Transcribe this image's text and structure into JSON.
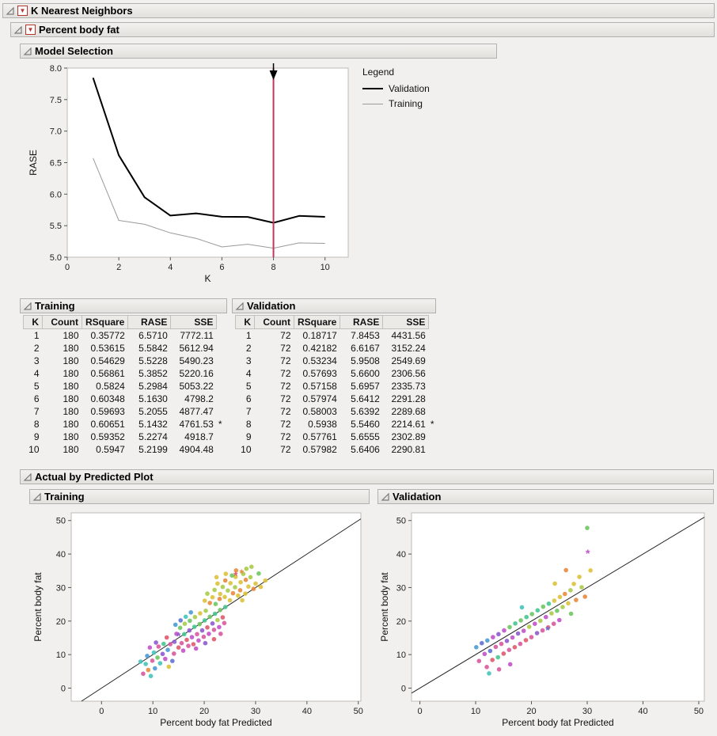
{
  "outline": {
    "knn": "K Nearest Neighbors",
    "pbf": "Percent body fat",
    "model_selection": "Model Selection",
    "training": "Training",
    "validation": "Validation",
    "actual_by_predicted": "Actual by Predicted Plot",
    "training2": "Training",
    "validation2": "Validation"
  },
  "legend": {
    "title": "Legend",
    "entries": [
      {
        "label": "Validation",
        "color": "#000000",
        "width": 2
      },
      {
        "label": "Training",
        "color": "#9a9a9a",
        "width": 1
      }
    ]
  },
  "palette": [
    "#e05a6d",
    "#e8893e",
    "#ddc23c",
    "#a8cc4a",
    "#6fc763",
    "#46c78f",
    "#45c4bc",
    "#4a9bd5",
    "#5f74d0",
    "#8e5bcf",
    "#c253c9",
    "#d85a9f"
  ],
  "chart_data": [
    {
      "type": "line",
      "title": "Model Selection",
      "xlabel": "K",
      "ylabel": "RASE",
      "xlim": [
        0,
        10.9
      ],
      "ylim": [
        5.0,
        8.0
      ],
      "xticks": [
        0,
        2,
        4,
        6,
        8,
        10
      ],
      "yticks": [
        5.0,
        5.5,
        6.0,
        6.5,
        7.0,
        7.5,
        8.0
      ],
      "x": [
        1,
        2,
        3,
        4,
        5,
        6,
        7,
        8,
        9,
        10
      ],
      "series": [
        {
          "name": "Validation",
          "color": "#000000",
          "width": 2,
          "values": [
            7.8453,
            6.6167,
            5.9508,
            5.66,
            5.6957,
            5.6412,
            5.6392,
            5.546,
            5.6555,
            5.6406
          ]
        },
        {
          "name": "Training",
          "color": "#9a9a9a",
          "width": 1,
          "values": [
            6.571,
            5.5842,
            5.5228,
            5.3852,
            5.2984,
            5.163,
            5.2055,
            5.1432,
            5.2274,
            5.2199
          ]
        }
      ],
      "selected_k": 8,
      "selection_color": "#c2375a",
      "marker_color": "#000000"
    },
    {
      "type": "table",
      "title": "Training",
      "columns": [
        "K",
        "Count",
        "RSquare",
        "RASE",
        "SSE"
      ],
      "rows": [
        [
          "1",
          "180",
          "0.35772",
          "6.5710",
          "7772.11",
          ""
        ],
        [
          "2",
          "180",
          "0.53615",
          "5.5842",
          "5612.94",
          ""
        ],
        [
          "3",
          "180",
          "0.54629",
          "5.5228",
          "5490.23",
          ""
        ],
        [
          "4",
          "180",
          "0.56861",
          "5.3852",
          "5220.16",
          ""
        ],
        [
          "5",
          "180",
          "0.5824",
          "5.2984",
          "5053.22",
          ""
        ],
        [
          "6",
          "180",
          "0.60348",
          "5.1630",
          "4798.2",
          ""
        ],
        [
          "7",
          "180",
          "0.59693",
          "5.2055",
          "4877.47",
          ""
        ],
        [
          "8",
          "180",
          "0.60651",
          "5.1432",
          "4761.53",
          "*"
        ],
        [
          "9",
          "180",
          "0.59352",
          "5.2274",
          "4918.7",
          ""
        ],
        [
          "10",
          "180",
          "0.5947",
          "5.2199",
          "4904.48",
          ""
        ]
      ]
    },
    {
      "type": "table",
      "title": "Validation",
      "columns": [
        "K",
        "Count",
        "RSquare",
        "RASE",
        "SSE"
      ],
      "rows": [
        [
          "1",
          "72",
          "0.18717",
          "7.8453",
          "4431.56",
          ""
        ],
        [
          "2",
          "72",
          "0.42182",
          "6.6167",
          "3152.24",
          ""
        ],
        [
          "3",
          "72",
          "0.53234",
          "5.9508",
          "2549.69",
          ""
        ],
        [
          "4",
          "72",
          "0.57693",
          "5.6600",
          "2306.56",
          ""
        ],
        [
          "5",
          "72",
          "0.57158",
          "5.6957",
          "2335.73",
          ""
        ],
        [
          "6",
          "72",
          "0.57974",
          "5.6412",
          "2291.28",
          ""
        ],
        [
          "7",
          "72",
          "0.58003",
          "5.6392",
          "2289.68",
          ""
        ],
        [
          "8",
          "72",
          "0.5938",
          "5.5460",
          "2214.61",
          "*"
        ],
        [
          "9",
          "72",
          "0.57761",
          "5.6555",
          "2302.89",
          ""
        ],
        [
          "10",
          "72",
          "0.57982",
          "5.6406",
          "2290.81",
          ""
        ]
      ]
    },
    {
      "type": "scatter",
      "title": "Training",
      "xlabel": "Percent body fat Predicted",
      "ylabel": "Percent body fat",
      "xlim": [
        -5.9,
        50.5
      ],
      "ylim": [
        -3.9,
        52.3
      ],
      "xticks": [
        0,
        10,
        20,
        30,
        40,
        50
      ],
      "yticks": [
        0,
        10,
        20,
        30,
        40,
        50
      ],
      "identity_line": true,
      "points": [
        [
          7.6,
          7.9,
          6
        ],
        [
          8.1,
          4.3,
          11
        ],
        [
          8.6,
          7.2,
          6
        ],
        [
          8.9,
          9.6,
          7
        ],
        [
          9.1,
          5.4,
          1
        ],
        [
          9.4,
          12.1,
          10
        ],
        [
          9.9,
          8.2,
          11
        ],
        [
          10.2,
          10.6,
          6
        ],
        [
          10.4,
          5.9,
          7
        ],
        [
          10.9,
          9.1,
          4
        ],
        [
          11.1,
          12.4,
          11
        ],
        [
          11.4,
          7.4,
          6
        ],
        [
          11.9,
          10.2,
          9
        ],
        [
          12.1,
          13.2,
          5
        ],
        [
          12.4,
          8.7,
          10
        ],
        [
          12.9,
          11.4,
          7
        ],
        [
          13.1,
          6.4,
          2
        ],
        [
          13.4,
          13.1,
          11
        ],
        [
          10.6,
          13.6,
          9
        ],
        [
          9.6,
          3.6,
          6
        ],
        [
          12.7,
          15.1,
          0
        ],
        [
          13.8,
          8.1,
          8
        ],
        [
          14.1,
          10.3,
          11
        ],
        [
          14.2,
          13.8,
          9
        ],
        [
          14.6,
          16.2,
          10
        ],
        [
          15.0,
          12.1,
          0
        ],
        [
          15.3,
          18.0,
          4
        ],
        [
          15.6,
          13.4,
          11
        ],
        [
          15.9,
          11.2,
          10
        ],
        [
          16.1,
          16.1,
          5
        ],
        [
          16.2,
          19.2,
          3
        ],
        [
          16.6,
          14.4,
          0
        ],
        [
          16.9,
          12.6,
          11
        ],
        [
          17.1,
          17.2,
          9
        ],
        [
          17.2,
          20.1,
          4
        ],
        [
          17.6,
          15.2,
          10
        ],
        [
          17.9,
          13.1,
          0
        ],
        [
          18.1,
          18.3,
          5
        ],
        [
          18.2,
          21.2,
          3
        ],
        [
          18.6,
          16.1,
          11
        ],
        [
          18.9,
          14.2,
          10
        ],
        [
          19.1,
          19.1,
          4
        ],
        [
          19.2,
          22.3,
          2
        ],
        [
          19.6,
          17.2,
          9
        ],
        [
          19.9,
          15.3,
          11
        ],
        [
          20.1,
          20.2,
          5
        ],
        [
          20.3,
          23.1,
          3
        ],
        [
          20.6,
          18.1,
          0
        ],
        [
          20.9,
          16.2,
          10
        ],
        [
          21.1,
          21.3,
          4
        ],
        [
          21.6,
          19.3,
          9
        ],
        [
          21.9,
          17.4,
          11
        ],
        [
          22.1,
          22.2,
          5
        ],
        [
          22.6,
          20.3,
          3
        ],
        [
          22.9,
          18.2,
          10
        ],
        [
          23.1,
          23.3,
          4
        ],
        [
          23.6,
          21.1,
          0
        ],
        [
          23.9,
          19.4,
          11
        ],
        [
          24.1,
          24.2,
          5
        ],
        [
          16.4,
          21.3,
          6
        ],
        [
          17.4,
          22.6,
          7
        ],
        [
          15.4,
          20.2,
          8
        ],
        [
          14.4,
          18.9,
          7
        ],
        [
          21.9,
          14.6,
          0
        ],
        [
          23.2,
          16.2,
          11
        ],
        [
          18.4,
          11.8,
          10
        ],
        [
          20.2,
          13.4,
          9
        ],
        [
          20.1,
          26.1,
          2
        ],
        [
          20.6,
          28.2,
          3
        ],
        [
          21.1,
          25.4,
          1
        ],
        [
          21.6,
          27.1,
          2
        ],
        [
          22.0,
          29.3,
          3
        ],
        [
          22.2,
          25.1,
          4
        ],
        [
          22.6,
          31.2,
          2
        ],
        [
          23.0,
          26.6,
          1
        ],
        [
          23.1,
          28.1,
          2
        ],
        [
          23.6,
          30.2,
          3
        ],
        [
          24.0,
          27.2,
          2
        ],
        [
          24.1,
          32.1,
          1
        ],
        [
          24.6,
          29.1,
          3
        ],
        [
          25.0,
          26.2,
          2
        ],
        [
          25.1,
          31.3,
          2
        ],
        [
          25.6,
          28.3,
          1
        ],
        [
          26.0,
          30.1,
          3
        ],
        [
          26.1,
          33.2,
          2
        ],
        [
          26.6,
          27.6,
          2
        ],
        [
          27.0,
          29.2,
          1
        ],
        [
          27.1,
          31.6,
          2
        ],
        [
          27.6,
          34.1,
          3
        ],
        [
          28.0,
          28.2,
          2
        ],
        [
          28.1,
          32.3,
          1
        ],
        [
          28.6,
          30.3,
          2
        ],
        [
          29.0,
          33.1,
          3
        ],
        [
          29.6,
          29.6,
          1
        ],
        [
          30.0,
          31.2,
          2
        ],
        [
          30.6,
          34.2,
          4
        ],
        [
          31.0,
          30.2,
          2
        ],
        [
          28.2,
          35.6,
          3
        ],
        [
          26.2,
          35.1,
          1
        ],
        [
          24.2,
          34.1,
          2
        ],
        [
          31.9,
          32.1,
          2
        ],
        [
          25.4,
          33.6,
          4
        ],
        [
          22.4,
          33.1,
          2
        ],
        [
          29.2,
          36.2,
          3
        ],
        [
          27.4,
          26.2,
          2
        ]
      ],
      "stars": [
        [
          26.1,
          33.6,
          0
        ],
        [
          27.3,
          34.4,
          1
        ],
        [
          15.0,
          15.6,
          9
        ]
      ]
    },
    {
      "type": "scatter",
      "title": "Validation",
      "xlabel": "Percent body fat Predicted",
      "ylabel": "Percent body fat",
      "xlim": [
        -1.5,
        51.0
      ],
      "ylim": [
        -3.9,
        52.3
      ],
      "xticks": [
        0,
        10,
        20,
        30,
        40,
        50
      ],
      "yticks": [
        0,
        10,
        20,
        30,
        40,
        50
      ],
      "identity_line": true,
      "points": [
        [
          10.1,
          12.2,
          7
        ],
        [
          10.6,
          8.1,
          11
        ],
        [
          11.1,
          13.4,
          8
        ],
        [
          11.6,
          10.2,
          10
        ],
        [
          12.0,
          6.3,
          11
        ],
        [
          12.1,
          14.2,
          7
        ],
        [
          12.6,
          11.1,
          8
        ],
        [
          13.0,
          8.4,
          0
        ],
        [
          13.1,
          15.2,
          10
        ],
        [
          13.6,
          12.3,
          11
        ],
        [
          14.0,
          9.2,
          5
        ],
        [
          14.1,
          16.1,
          9
        ],
        [
          14.6,
          13.2,
          11
        ],
        [
          15.0,
          10.3,
          0
        ],
        [
          15.1,
          17.2,
          10
        ],
        [
          15.6,
          14.1,
          9
        ],
        [
          16.0,
          11.4,
          11
        ],
        [
          16.1,
          18.2,
          4
        ],
        [
          16.6,
          15.1,
          10
        ],
        [
          17.0,
          12.2,
          0
        ],
        [
          17.1,
          19.3,
          5
        ],
        [
          17.6,
          16.3,
          9
        ],
        [
          18.0,
          13.2,
          11
        ],
        [
          18.1,
          20.2,
          4
        ],
        [
          18.6,
          17.1,
          10
        ],
        [
          19.0,
          14.3,
          0
        ],
        [
          19.1,
          21.2,
          5
        ],
        [
          19.6,
          18.3,
          3
        ],
        [
          20.0,
          15.2,
          11
        ],
        [
          20.1,
          22.1,
          4
        ],
        [
          20.6,
          19.2,
          10
        ],
        [
          21.0,
          16.4,
          9
        ],
        [
          21.1,
          23.2,
          5
        ],
        [
          21.6,
          20.1,
          3
        ],
        [
          22.0,
          17.2,
          11
        ],
        [
          22.1,
          24.3,
          4
        ],
        [
          22.6,
          21.2,
          10
        ],
        [
          23.0,
          18.1,
          0
        ],
        [
          23.1,
          25.2,
          5
        ],
        [
          23.6,
          22.3,
          3
        ],
        [
          24.0,
          19.2,
          11
        ],
        [
          24.1,
          26.1,
          2
        ],
        [
          24.6,
          23.1,
          4
        ],
        [
          25.0,
          20.3,
          10
        ],
        [
          25.1,
          27.2,
          2
        ],
        [
          25.6,
          24.2,
          3
        ],
        [
          26.0,
          28.1,
          1
        ],
        [
          26.6,
          25.3,
          2
        ],
        [
          27.0,
          29.2,
          3
        ],
        [
          27.1,
          22.2,
          4
        ],
        [
          27.6,
          31.1,
          2
        ],
        [
          28.0,
          26.3,
          1
        ],
        [
          28.6,
          33.2,
          2
        ],
        [
          29.0,
          30.1,
          3
        ],
        [
          29.6,
          27.3,
          1
        ],
        [
          30.0,
          47.8,
          4
        ],
        [
          30.6,
          35.1,
          2
        ],
        [
          12.4,
          4.4,
          6
        ],
        [
          14.2,
          5.6,
          11
        ],
        [
          16.2,
          7.1,
          10
        ],
        [
          26.2,
          35.2,
          1
        ],
        [
          24.2,
          31.2,
          2
        ],
        [
          18.3,
          24.1,
          6
        ]
      ],
      "stars": [
        [
          30.1,
          40.2,
          10
        ],
        [
          22.9,
          17.4,
          8
        ]
      ]
    }
  ]
}
